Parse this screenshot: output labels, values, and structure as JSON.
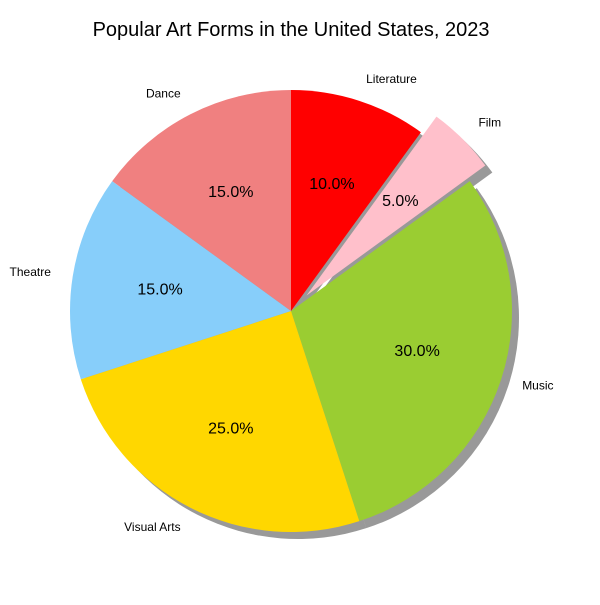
{
  "chart_data": {
    "type": "pie",
    "title": "Popular Art Forms in the United States, 2023",
    "categories": [
      "Music",
      "Visual Arts",
      "Theatre",
      "Dance",
      "Literature",
      "Film"
    ],
    "values": [
      30,
      25,
      15,
      15,
      10,
      5
    ],
    "percent_labels": [
      "30.0%",
      "25.0%",
      "15.0%",
      "15.0%",
      "10.0%",
      "5.0%"
    ],
    "colors": [
      "#9ACD32",
      "#FFD700",
      "#87CEFA",
      "#F08080",
      "#FF0000",
      "#FFC0CB"
    ],
    "exploded": [
      "Film"
    ],
    "shadow": true,
    "start_angle": 36,
    "direction": "clockwise"
  }
}
